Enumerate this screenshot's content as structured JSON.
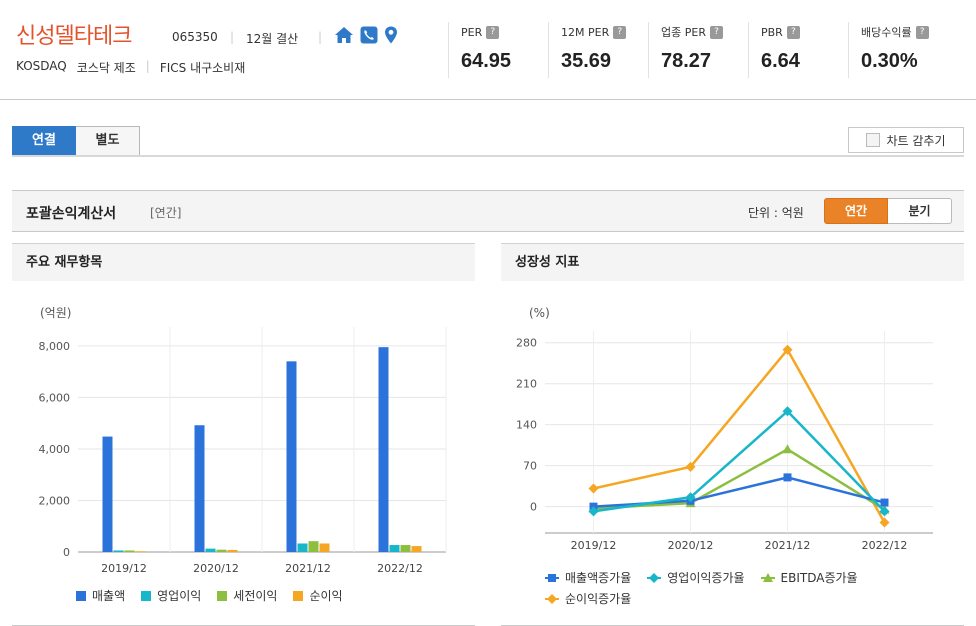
{
  "company": {
    "name": "신성델타테크",
    "code": "065350",
    "separator": "|",
    "fiscal_month": "12월 결산",
    "market": "KOSDAQ",
    "market_sector": "코스닥 제조",
    "fics": "FICS 내구소비재"
  },
  "metrics": [
    {
      "label": "PER",
      "value": "64.95"
    },
    {
      "label": "12M PER",
      "value": "35.69"
    },
    {
      "label": "업종 PER",
      "value": "78.27"
    },
    {
      "label": "PBR",
      "value": "6.64"
    },
    {
      "label": "배당수익률",
      "value": "0.30%"
    }
  ],
  "tabs": {
    "consolidated": "연결",
    "separate": "별도"
  },
  "hide_chart_label": "차트 감추기",
  "section": {
    "title": "포괄손익계산서",
    "subtitle": "[연간]",
    "unit_label": "단위 : 억원",
    "annual": "연간",
    "quarterly": "분기"
  },
  "left_panel_title": "주요 재무항목",
  "right_panel_title": "성장성 지표",
  "colors": {
    "accent_blue": "#2f79c9",
    "accent_orange": "#ea8227",
    "company_red": "#e4532b"
  },
  "chart_data": [
    {
      "type": "bar",
      "unit_label": "(억원)",
      "categories": [
        "2019/12",
        "2020/12",
        "2021/12",
        "2022/12"
      ],
      "ylim": [
        0,
        8500
      ],
      "yticks": [
        0,
        2000,
        4000,
        6000,
        8000
      ],
      "ytick_labels": [
        "0",
        "2,000",
        "4,000",
        "6,000",
        "8,000"
      ],
      "grid": true,
      "legend_position": "bottom",
      "series": [
        {
          "name": "매출액",
          "color": "#2b73db",
          "values": [
            4480,
            4920,
            7400,
            7950
          ]
        },
        {
          "name": "영업이익",
          "color": "#17b6c9",
          "values": [
            60,
            130,
            330,
            270
          ]
        },
        {
          "name": "세전이익",
          "color": "#8cbf3f",
          "values": [
            60,
            90,
            420,
            270
          ]
        },
        {
          "name": "순이익",
          "color": "#f5a623",
          "values": [
            30,
            80,
            330,
            230
          ]
        }
      ]
    },
    {
      "type": "line",
      "unit_label": "(%)",
      "categories": [
        "2019/12",
        "2020/12",
        "2021/12",
        "2022/12"
      ],
      "ylim": [
        -45,
        300
      ],
      "yticks": [
        0,
        70,
        140,
        210,
        280
      ],
      "ytick_labels": [
        "0",
        "70",
        "140",
        "210",
        "280"
      ],
      "grid": true,
      "legend_position": "bottom",
      "series": [
        {
          "name": "매출액증가율",
          "color": "#2b73db",
          "marker": "square",
          "values": [
            0,
            10,
            50,
            7
          ]
        },
        {
          "name": "영업이익증가율",
          "color": "#17b6c9",
          "marker": "diamond",
          "values": [
            -8,
            16,
            163,
            -8
          ]
        },
        {
          "name": "EBITDA증가율",
          "color": "#8cbf3f",
          "marker": "triangle",
          "values": [
            -3,
            6,
            98,
            -5
          ]
        },
        {
          "name": "순이익증가율",
          "color": "#f5a623",
          "marker": "diamond",
          "values": [
            31,
            68,
            268,
            -27
          ]
        }
      ]
    }
  ]
}
